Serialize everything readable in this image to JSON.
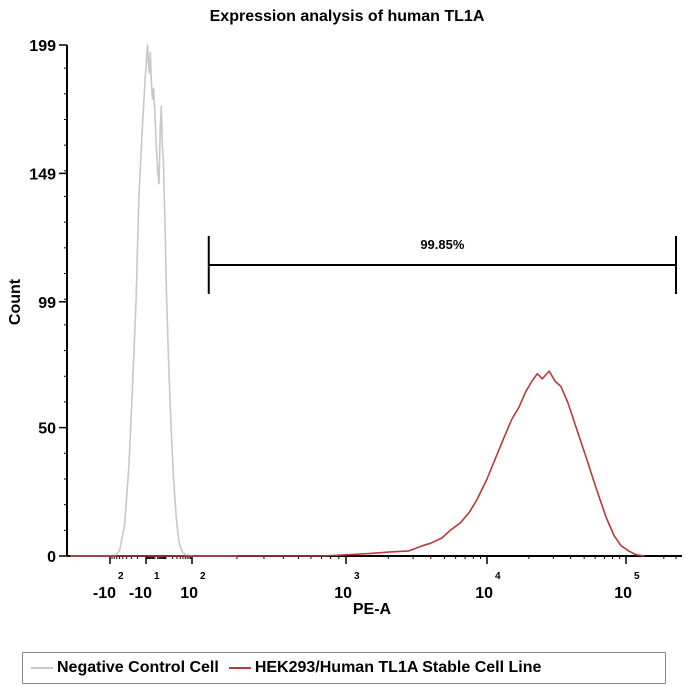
{
  "chart_data": {
    "type": "histogram",
    "title": "Expression analysis of human TL1A",
    "xlabel": "PE-A",
    "ylabel": "Count",
    "x_scale": "biexponential",
    "x_ticks": [
      {
        "base": "-10",
        "exp": "2",
        "value": -100
      },
      {
        "base": "-10",
        "exp": "1",
        "value": -10
      },
      {
        "base": "10",
        "exp": "2",
        "value": 100
      },
      {
        "base": "10",
        "exp": "3",
        "value": 1000
      },
      {
        "base": "10",
        "exp": "4",
        "value": 10000
      },
      {
        "base": "10",
        "exp": "5",
        "value": 100000
      }
    ],
    "y_ticks": [
      0,
      50,
      99,
      149,
      199
    ],
    "ylim": [
      0,
      199
    ],
    "gate": {
      "label": "99.85%",
      "from": 130,
      "to": 250000
    },
    "series": [
      {
        "name": "Negative Control Cell",
        "color": "#c8c8c8",
        "points": [
          [
            -250,
            0
          ],
          [
            -150,
            0
          ],
          [
            -80,
            0
          ],
          [
            -60,
            2
          ],
          [
            -45,
            12
          ],
          [
            -35,
            35
          ],
          [
            -28,
            65
          ],
          [
            -22,
            100
          ],
          [
            -18,
            140
          ],
          [
            -14,
            165
          ],
          [
            -11,
            185
          ],
          [
            -9,
            195
          ],
          [
            -8,
            199
          ],
          [
            -7,
            192
          ],
          [
            -6,
            188
          ],
          [
            -5,
            196
          ],
          [
            -4,
            185
          ],
          [
            -3,
            178
          ],
          [
            -2,
            182
          ],
          [
            -1,
            172
          ],
          [
            0,
            160
          ],
          [
            1,
            150
          ],
          [
            2,
            145
          ],
          [
            3,
            166
          ],
          [
            4,
            175
          ],
          [
            5,
            160
          ],
          [
            6,
            155
          ],
          [
            8,
            128
          ],
          [
            10,
            100
          ],
          [
            13,
            75
          ],
          [
            17,
            50
          ],
          [
            22,
            30
          ],
          [
            28,
            15
          ],
          [
            35,
            6
          ],
          [
            45,
            2
          ],
          [
            60,
            0.5
          ],
          [
            100,
            0
          ],
          [
            200,
            0
          ]
        ]
      },
      {
        "name": "HEK293/Human TL1A Stable Cell Line",
        "color": "#b83a3a",
        "points": [
          [
            -250,
            0
          ],
          [
            130,
            0
          ],
          [
            700,
            0
          ],
          [
            1100,
            0.6
          ],
          [
            1500,
            1
          ],
          [
            2000,
            1.5
          ],
          [
            2800,
            2
          ],
          [
            3500,
            4
          ],
          [
            4000,
            5
          ],
          [
            4800,
            7
          ],
          [
            5500,
            10
          ],
          [
            6500,
            13
          ],
          [
            7500,
            17
          ],
          [
            8500,
            22
          ],
          [
            10000,
            30
          ],
          [
            11500,
            38
          ],
          [
            13000,
            45
          ],
          [
            15000,
            53
          ],
          [
            17000,
            58
          ],
          [
            19000,
            64
          ],
          [
            21000,
            68
          ],
          [
            23000,
            71
          ],
          [
            25000,
            69
          ],
          [
            28000,
            72
          ],
          [
            31000,
            68
          ],
          [
            34000,
            66
          ],
          [
            38000,
            60
          ],
          [
            42000,
            53
          ],
          [
            47000,
            45
          ],
          [
            52000,
            38
          ],
          [
            58000,
            30
          ],
          [
            65000,
            22
          ],
          [
            72000,
            15
          ],
          [
            82000,
            8
          ],
          [
            92000,
            4
          ],
          [
            105000,
            2
          ],
          [
            120000,
            0.5
          ],
          [
            140000,
            0
          ]
        ]
      }
    ]
  }
}
